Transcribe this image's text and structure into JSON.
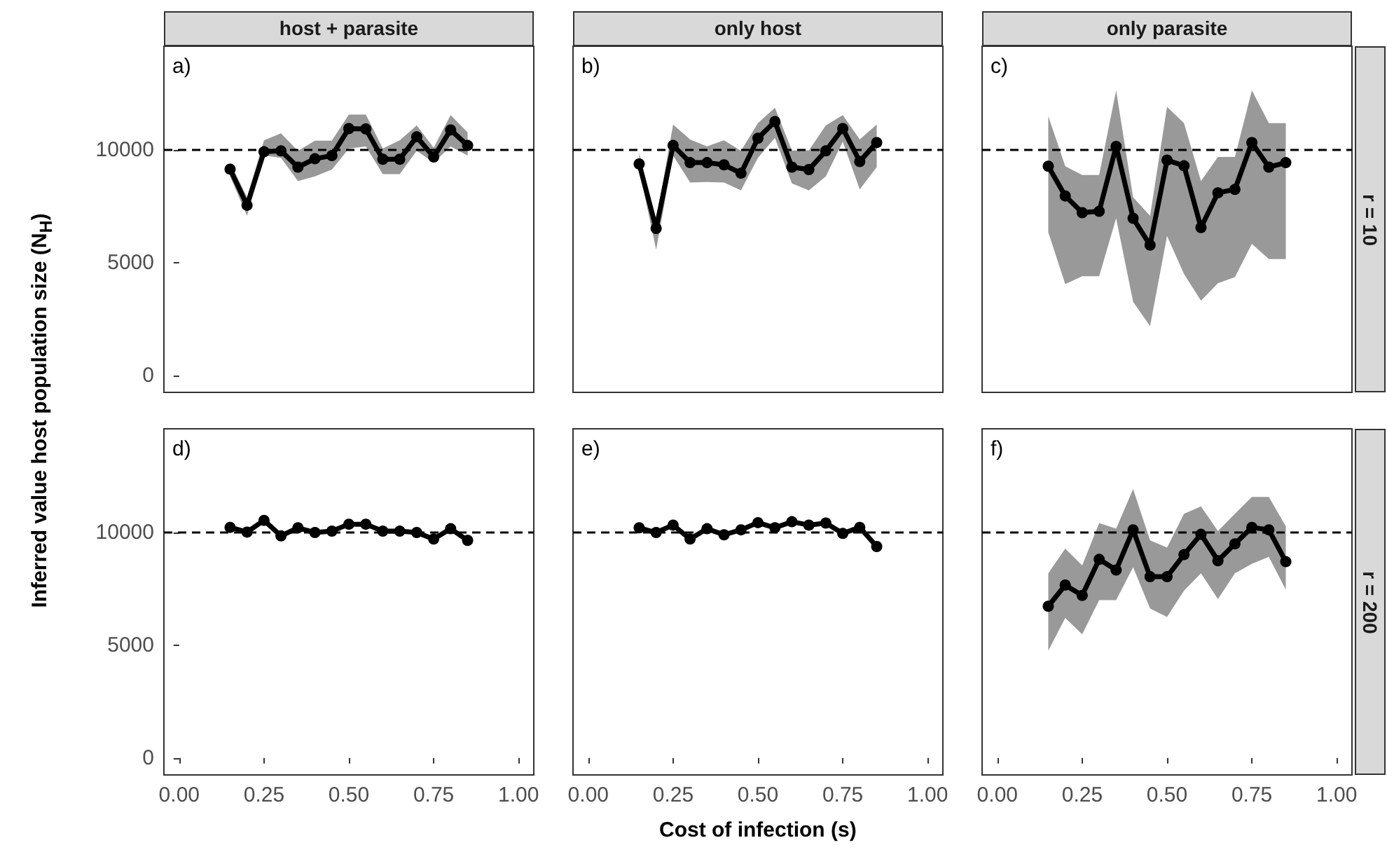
{
  "chart_data": [
    {
      "type": "line",
      "title": "host + parasite",
      "ylabel": "Inferred value host population size (N$_{H}$)",
      "annotations": [
        "a)"
      ],
      "tick_labels": "y",
      "grid": false,
      "marker": "circle",
      "line_style": "solid",
      "xlim": [
        -0.045,
        1.045
      ],
      "ylim": [
        -750,
        14600
      ],
      "yticks": [
        0,
        5000,
        10000
      ],
      "ref_lines": [
        {
          "axis": "y",
          "value": 10000,
          "color": "#000000",
          "line_style": "dashed"
        }
      ],
      "x": [
        0.15,
        0.2,
        0.25,
        0.3,
        0.35,
        0.4,
        0.45,
        0.5,
        0.55,
        0.6,
        0.65,
        0.7,
        0.75,
        0.8,
        0.85
      ],
      "series": [
        {
          "color": "#000000",
          "values": [
            9150,
            7550,
            9920,
            9960,
            9240,
            9610,
            9750,
            10950,
            10930,
            9590,
            9590,
            10580,
            9690,
            10890,
            10200
          ],
          "lower": [
            8830,
            7080,
            9750,
            9650,
            8620,
            8830,
            9130,
            10060,
            10160,
            8930,
            8930,
            9960,
            9440,
            10160,
            9750
          ],
          "upper": [
            9440,
            7900,
            10430,
            10740,
            9960,
            10410,
            10410,
            11570,
            11570,
            10060,
            10430,
            11090,
            10100,
            11550,
            10780
          ]
        }
      ]
    },
    {
      "type": "line",
      "title": "only host",
      "annotations": [
        "b)"
      ],
      "tick_labels": false,
      "grid": false,
      "marker": "circle",
      "line_style": "solid",
      "xlim": [
        -0.045,
        1.045
      ],
      "ylim": [
        -750,
        14600
      ],
      "ref_lines": [
        {
          "axis": "y",
          "value": 10000,
          "color": "#000000",
          "line_style": "dashed"
        }
      ],
      "x": [
        0.15,
        0.2,
        0.25,
        0.3,
        0.35,
        0.4,
        0.45,
        0.5,
        0.55,
        0.6,
        0.65,
        0.7,
        0.75,
        0.8,
        0.85
      ],
      "series": [
        {
          "color": "#000000",
          "values": [
            9380,
            6520,
            10200,
            9440,
            9440,
            9340,
            8970,
            10520,
            11260,
            9240,
            9130,
            9960,
            10950,
            9490,
            10330
          ],
          "lower": [
            9130,
            5570,
            9750,
            8560,
            8580,
            8560,
            8210,
            9650,
            10540,
            8520,
            8210,
            8830,
            10370,
            8250,
            9240
          ],
          "upper": [
            9860,
            6870,
            11130,
            10470,
            10160,
            10430,
            9960,
            11190,
            11870,
            9980,
            9980,
            11090,
            11550,
            10470,
            11130
          ]
        }
      ]
    },
    {
      "type": "line",
      "title": "only parasite",
      "annotations": [
        "c)",
        "r = 10"
      ],
      "tick_labels": false,
      "grid": false,
      "marker": "circle",
      "line_style": "solid",
      "xlim": [
        -0.045,
        1.045
      ],
      "ylim": [
        -750,
        14600
      ],
      "ref_lines": [
        {
          "axis": "y",
          "value": 10000,
          "color": "#000000",
          "line_style": "dashed"
        }
      ],
      "x": [
        0.15,
        0.2,
        0.25,
        0.3,
        0.35,
        0.4,
        0.45,
        0.5,
        0.55,
        0.6,
        0.65,
        0.7,
        0.75,
        0.8,
        0.85
      ],
      "series": [
        {
          "color": "#000000",
          "values": [
            9280,
            7960,
            7220,
            7280,
            10160,
            6970,
            5780,
            9550,
            9300,
            6560,
            8100,
            8250,
            10330,
            9240,
            9440
          ],
          "lower": [
            6350,
            4050,
            4400,
            4400,
            6970,
            3270,
            2190,
            6190,
            4500,
            3310,
            4090,
            4360,
            5840,
            5160,
            5160
          ],
          "upper": [
            11500,
            9280,
            8890,
            8890,
            12640,
            7900,
            7080,
            11910,
            11190,
            8620,
            9690,
            9690,
            12640,
            11190,
            11190
          ]
        }
      ]
    },
    {
      "type": "line",
      "annotations": [
        "d)"
      ],
      "grid": false,
      "marker": "circle",
      "line_style": "solid",
      "xlim": [
        -0.045,
        1.045
      ],
      "xticks": [
        {
          "value": 0,
          "label": "0.00"
        },
        {
          "value": 0.25,
          "label": "0.25"
        },
        {
          "value": 0.5,
          "label": "0.50"
        },
        {
          "value": 0.75,
          "label": "0.75"
        },
        {
          "value": 1,
          "label": "1.00"
        }
      ],
      "ylim": [
        -750,
        14600
      ],
      "yticks": [
        0,
        5000,
        10000
      ],
      "ref_lines": [
        {
          "axis": "y",
          "value": 10000,
          "color": "#000000",
          "line_style": "dashed"
        }
      ],
      "x": [
        0.15,
        0.2,
        0.25,
        0.3,
        0.35,
        0.4,
        0.45,
        0.5,
        0.55,
        0.6,
        0.65,
        0.7,
        0.75,
        0.8,
        0.85
      ],
      "series": [
        {
          "color": "#000000",
          "values": [
            10230,
            10020,
            10540,
            9850,
            10210,
            10000,
            10060,
            10370,
            10370,
            10060,
            10060,
            10000,
            9710,
            10170,
            9650
          ]
        }
      ]
    },
    {
      "type": "line",
      "xlabel": "Cost of infection (s)",
      "annotations": [
        "e)"
      ],
      "tick_labels": "x",
      "grid": false,
      "marker": "circle",
      "line_style": "solid",
      "xlim": [
        -0.045,
        1.045
      ],
      "xticks": [
        {
          "value": 0,
          "label": "0.00"
        },
        {
          "value": 0.25,
          "label": "0.25"
        },
        {
          "value": 0.5,
          "label": "0.50"
        },
        {
          "value": 0.75,
          "label": "0.75"
        },
        {
          "value": 1,
          "label": "1.00"
        }
      ],
      "ylim": [
        -750,
        14600
      ],
      "ref_lines": [
        {
          "axis": "y",
          "value": 10000,
          "color": "#000000",
          "line_style": "dashed"
        }
      ],
      "x": [
        0.15,
        0.2,
        0.25,
        0.3,
        0.35,
        0.4,
        0.45,
        0.5,
        0.55,
        0.6,
        0.65,
        0.7,
        0.75,
        0.8,
        0.85
      ],
      "series": [
        {
          "color": "#000000",
          "values": [
            10210,
            10000,
            10330,
            9710,
            10170,
            9900,
            10120,
            10440,
            10210,
            10480,
            10330,
            10420,
            9960,
            10230,
            9380
          ]
        }
      ]
    },
    {
      "type": "line",
      "annotations": [
        "f)",
        "r = 200"
      ],
      "tick_labels": "x",
      "grid": false,
      "marker": "circle",
      "line_style": "solid",
      "xlim": [
        -0.045,
        1.045
      ],
      "xticks": [
        {
          "value": 0,
          "label": "0.00"
        },
        {
          "value": 0.25,
          "label": "0.25"
        },
        {
          "value": 0.5,
          "label": "0.50"
        },
        {
          "value": 0.75,
          "label": "0.75"
        },
        {
          "value": 1,
          "label": "1.00"
        }
      ],
      "ylim": [
        -750,
        14600
      ],
      "ref_lines": [
        {
          "axis": "y",
          "value": 10000,
          "color": "#000000",
          "line_style": "dashed"
        }
      ],
      "x": [
        0.15,
        0.2,
        0.25,
        0.3,
        0.35,
        0.4,
        0.45,
        0.5,
        0.55,
        0.6,
        0.65,
        0.7,
        0.75,
        0.8,
        0.85
      ],
      "series": [
        {
          "color": "#000000",
          "values": [
            6730,
            7670,
            7210,
            8810,
            8340,
            10120,
            8040,
            8040,
            9020,
            9920,
            8750,
            9500,
            10230,
            10120,
            8710
          ],
          "lower": [
            4760,
            6210,
            5490,
            7000,
            7000,
            8460,
            6630,
            6260,
            7420,
            8190,
            7050,
            8190,
            8610,
            8920,
            7460
          ],
          "upper": [
            8190,
            9290,
            8540,
            10420,
            10170,
            11930,
            9650,
            9330,
            10830,
            11160,
            10060,
            10830,
            11580,
            11580,
            10270
          ]
        }
      ]
    }
  ]
}
